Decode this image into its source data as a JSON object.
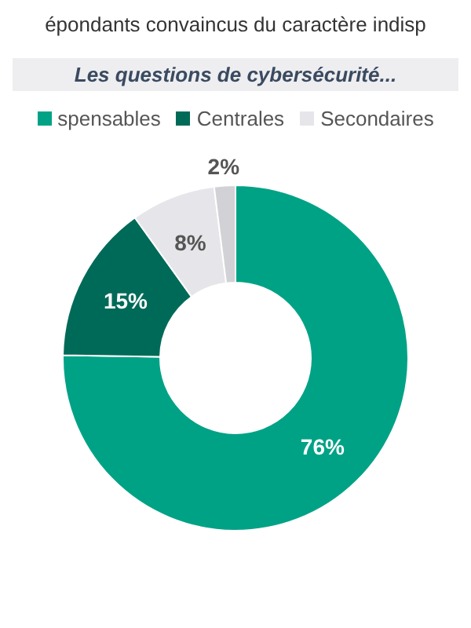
{
  "chart_data": {
    "type": "donut",
    "title": "épondants convaincus du caractère indisp",
    "subtitle": "Les questions de cybersécurité...",
    "categories": [
      "spensables",
      "Centrales",
      "Secondaires",
      null
    ],
    "values": [
      76,
      15,
      8,
      2
    ],
    "value_labels": [
      "76%",
      "15%",
      "8%",
      "2%"
    ],
    "colors": [
      "#00a286",
      "#006a58",
      "#e6e6ea",
      "#d2d2d6"
    ],
    "legend": "top"
  }
}
